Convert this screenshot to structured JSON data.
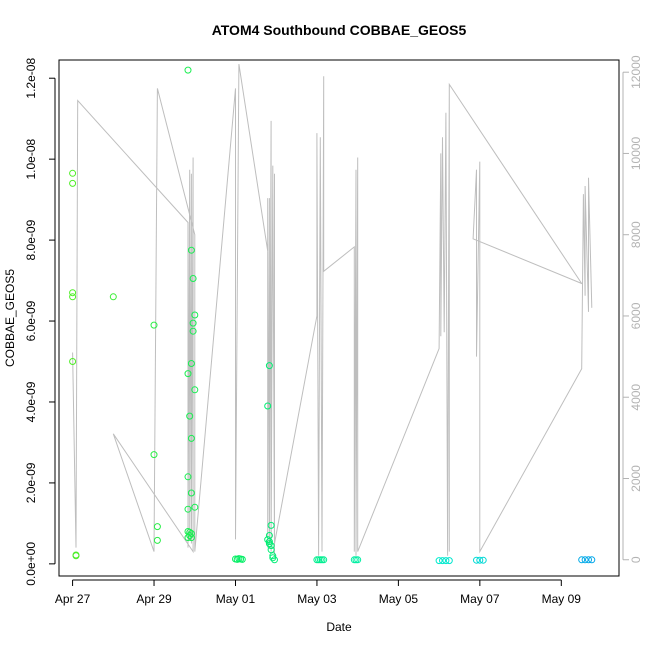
{
  "chart_data": {
    "type": "scatter",
    "title": "ATOM4 Southbound COBBAE_GEOS5",
    "xlabel": "Date",
    "ylabel": "COBBAE_GEOS5",
    "xlim": [
      "2016-04-26T16:00",
      "2016-05-10T10:00"
    ],
    "ylim": [
      -3e-10,
      1.245e-08
    ],
    "y2lim": [
      -400,
      12300
    ],
    "x_ticks": [
      {
        "date": "2016-04-27",
        "label": "Apr 27"
      },
      {
        "date": "2016-04-29",
        "label": "Apr 29"
      },
      {
        "date": "2016-05-01",
        "label": "May 01"
      },
      {
        "date": "2016-05-03",
        "label": "May 03"
      },
      {
        "date": "2016-05-05",
        "label": "May 05"
      },
      {
        "date": "2016-05-07",
        "label": "May 07"
      },
      {
        "date": "2016-05-09",
        "label": "May 09"
      }
    ],
    "y_ticks": [
      {
        "value": 0,
        "label": "0.0e+00"
      },
      {
        "value": 2e-09,
        "label": "2.0e-09"
      },
      {
        "value": 4e-09,
        "label": "4.0e-09"
      },
      {
        "value": 6e-09,
        "label": "6.0e-09"
      },
      {
        "value": 8e-09,
        "label": "8.0e-09"
      },
      {
        "value": 1e-08,
        "label": "1.0e-08"
      },
      {
        "value": 1.2e-08,
        "label": "1.2e-08"
      }
    ],
    "y2_ticks": [
      {
        "value": 0,
        "label": "0"
      },
      {
        "value": 2000,
        "label": "2000"
      },
      {
        "value": 4000,
        "label": "4000"
      },
      {
        "value": 6000,
        "label": "6000"
      },
      {
        "value": 8000,
        "label": "8000"
      },
      {
        "value": 10000,
        "label": "10000"
      },
      {
        "value": 12000,
        "label": "12000"
      }
    ],
    "grid": false,
    "legend": "none",
    "point_color_scale": [
      "#55ee22",
      "#00ee66",
      "#00eecc",
      "#0099ee"
    ],
    "points": [
      {
        "x": "2016-04-27T00:00",
        "y": 9.65e-09
      },
      {
        "x": "2016-04-27T00:00",
        "y": 9.4e-09
      },
      {
        "x": "2016-04-27T00:00",
        "y": 6.7e-09
      },
      {
        "x": "2016-04-27T00:00",
        "y": 6.6e-09
      },
      {
        "x": "2016-04-27T00:00",
        "y": 5e-09
      },
      {
        "x": "2016-04-27T02:00",
        "y": 2.2e-10
      },
      {
        "x": "2016-04-27T02:00",
        "y": 2e-10
      },
      {
        "x": "2016-04-28T00:00",
        "y": 6.6e-09
      },
      {
        "x": "2016-04-29T00:00",
        "y": 5.9e-09
      },
      {
        "x": "2016-04-29T00:00",
        "y": 2.7e-09
      },
      {
        "x": "2016-04-29T02:00",
        "y": 9.2e-10
      },
      {
        "x": "2016-04-29T02:00",
        "y": 5.8e-10
      },
      {
        "x": "2016-04-29T20:00",
        "y": 1.22e-08
      },
      {
        "x": "2016-04-29T20:00",
        "y": 4.7e-09
      },
      {
        "x": "2016-04-29T20:00",
        "y": 2.15e-09
      },
      {
        "x": "2016-04-29T20:00",
        "y": 1.35e-09
      },
      {
        "x": "2016-04-29T20:00",
        "y": 8e-10
      },
      {
        "x": "2016-04-29T20:00",
        "y": 6.5e-10
      },
      {
        "x": "2016-04-29T21:00",
        "y": 7.8e-10
      },
      {
        "x": "2016-04-29T21:00",
        "y": 7e-10
      },
      {
        "x": "2016-04-29T21:00",
        "y": 3.65e-09
      },
      {
        "x": "2016-04-29T22:00",
        "y": 7.75e-09
      },
      {
        "x": "2016-04-29T22:00",
        "y": 4.95e-09
      },
      {
        "x": "2016-04-29T22:00",
        "y": 3.1e-09
      },
      {
        "x": "2016-04-29T22:00",
        "y": 1.75e-09
      },
      {
        "x": "2016-04-29T22:00",
        "y": 7.5e-10
      },
      {
        "x": "2016-04-29T22:00",
        "y": 6.5e-10
      },
      {
        "x": "2016-04-29T23:00",
        "y": 7.05e-09
      },
      {
        "x": "2016-04-29T23:00",
        "y": 5.95e-09
      },
      {
        "x": "2016-04-29T23:00",
        "y": 5.75e-09
      },
      {
        "x": "2016-04-30T00:00",
        "y": 6.15e-09
      },
      {
        "x": "2016-04-30T00:00",
        "y": 4.3e-09
      },
      {
        "x": "2016-04-30T00:00",
        "y": 1.4e-09
      },
      {
        "x": "2016-05-01T00:00",
        "y": 1.2e-10
      },
      {
        "x": "2016-05-01T01:00",
        "y": 1.1e-10
      },
      {
        "x": "2016-05-01T02:00",
        "y": 1.3e-10
      },
      {
        "x": "2016-05-01T03:00",
        "y": 1.2e-10
      },
      {
        "x": "2016-05-01T04:00",
        "y": 1.1e-10
      },
      {
        "x": "2016-05-01T19:00",
        "y": 3.9e-09
      },
      {
        "x": "2016-05-01T20:00",
        "y": 4.9e-09
      },
      {
        "x": "2016-05-01T19:00",
        "y": 6e-10
      },
      {
        "x": "2016-05-01T20:00",
        "y": 5e-10
      },
      {
        "x": "2016-05-01T20:00",
        "y": 7e-10
      },
      {
        "x": "2016-05-01T21:00",
        "y": 9.5e-10
      },
      {
        "x": "2016-05-01T21:00",
        "y": 3.5e-10
      },
      {
        "x": "2016-05-01T22:00",
        "y": 2e-10
      },
      {
        "x": "2016-05-01T22:00",
        "y": 1.5e-10
      },
      {
        "x": "2016-05-01T23:00",
        "y": 1e-10
      },
      {
        "x": "2016-05-01T20:00",
        "y": 5.5e-10
      },
      {
        "x": "2016-05-01T21:00",
        "y": 4.5e-10
      },
      {
        "x": "2016-05-03T00:00",
        "y": 1e-10
      },
      {
        "x": "2016-05-03T01:00",
        "y": 1e-10
      },
      {
        "x": "2016-05-03T02:00",
        "y": 1e-10
      },
      {
        "x": "2016-05-03T03:00",
        "y": 1e-10
      },
      {
        "x": "2016-05-03T04:00",
        "y": 1e-10
      },
      {
        "x": "2016-05-03T22:00",
        "y": 1e-10
      },
      {
        "x": "2016-05-03T23:00",
        "y": 1e-10
      },
      {
        "x": "2016-05-04T00:00",
        "y": 1e-10
      },
      {
        "x": "2016-05-06T00:00",
        "y": 8e-11
      },
      {
        "x": "2016-05-06T02:00",
        "y": 8e-11
      },
      {
        "x": "2016-05-06T04:00",
        "y": 8e-11
      },
      {
        "x": "2016-05-06T06:00",
        "y": 8e-11
      },
      {
        "x": "2016-05-06T22:00",
        "y": 9e-11
      },
      {
        "x": "2016-05-07T00:00",
        "y": 9e-11
      },
      {
        "x": "2016-05-07T02:00",
        "y": 9e-11
      },
      {
        "x": "2016-05-09T12:00",
        "y": 1e-10
      },
      {
        "x": "2016-05-09T14:00",
        "y": 1e-10
      },
      {
        "x": "2016-05-09T16:00",
        "y": 1e-10
      },
      {
        "x": "2016-05-09T18:00",
        "y": 1e-10
      }
    ],
    "secondary_line": [
      {
        "x": "2016-04-27T00:00",
        "y2": 5100
      },
      {
        "x": "2016-04-27T02:00",
        "y2": 300
      },
      {
        "x": "2016-04-27T03:00",
        "y2": 11300
      },
      {
        "x": "2016-04-29T20:00",
        "y2": 8300
      },
      {
        "x": "2016-04-29T20:00",
        "y2": 300
      },
      {
        "x": "2016-04-29T21:00",
        "y2": 9600
      },
      {
        "x": "2016-04-29T21:00",
        "y2": 500
      },
      {
        "x": "2016-04-29T22:00",
        "y2": 9500
      },
      {
        "x": "2016-04-29T22:00",
        "y2": 400
      },
      {
        "x": "2016-04-29T23:00",
        "y2": 9900
      },
      {
        "x": "2016-04-29T23:00",
        "y2": 200
      },
      {
        "x": "2016-04-28T00:00",
        "y2": 3100
      },
      {
        "x": "2016-04-29T00:00",
        "y2": 200
      },
      {
        "x": "2016-04-29T02:00",
        "y2": 11600
      },
      {
        "x": "2016-04-30T00:00",
        "y2": 8000
      },
      {
        "x": "2016-04-30T00:00",
        "y2": 200
      },
      {
        "x": "2016-05-01T00:00",
        "y2": 11600
      },
      {
        "x": "2016-05-01T00:00",
        "y2": 500
      },
      {
        "x": "2016-05-01T02:00",
        "y2": 12200
      },
      {
        "x": "2016-05-01T19:00",
        "y2": 7600
      },
      {
        "x": "2016-05-01T19:00",
        "y2": 8900
      },
      {
        "x": "2016-05-01T19:00",
        "y2": 300
      },
      {
        "x": "2016-05-01T20:00",
        "y2": 8900
      },
      {
        "x": "2016-05-01T20:00",
        "y2": 400
      },
      {
        "x": "2016-05-01T21:00",
        "y2": 10800
      },
      {
        "x": "2016-05-01T21:00",
        "y2": 200
      },
      {
        "x": "2016-05-01T22:00",
        "y2": 9700
      },
      {
        "x": "2016-05-01T23:00",
        "y2": 100
      },
      {
        "x": "2016-05-01T23:00",
        "y2": 9500
      },
      {
        "x": "2016-05-01T23:00",
        "y2": 400
      },
      {
        "x": "2016-05-03T00:00",
        "y2": 6000
      },
      {
        "x": "2016-05-03T00:00",
        "y2": 10500
      },
      {
        "x": "2016-05-03T01:00",
        "y2": 100
      },
      {
        "x": "2016-05-03T02:00",
        "y2": 10400
      },
      {
        "x": "2016-05-03T03:00",
        "y2": 200
      },
      {
        "x": "2016-05-03T04:00",
        "y2": 11900
      },
      {
        "x": "2016-05-03T04:00",
        "y2": 7100
      },
      {
        "x": "2016-05-03T22:00",
        "y2": 7700
      },
      {
        "x": "2016-05-03T22:00",
        "y2": 200
      },
      {
        "x": "2016-05-03T23:00",
        "y2": 9600
      },
      {
        "x": "2016-05-03T23:00",
        "y2": 100
      },
      {
        "x": "2016-05-04T00:00",
        "y2": 9900
      },
      {
        "x": "2016-05-04T00:00",
        "y2": 200
      },
      {
        "x": "2016-05-06T00:00",
        "y2": 5200
      },
      {
        "x": "2016-05-06T01:00",
        "y2": 10000
      },
      {
        "x": "2016-05-06T01:00",
        "y2": 5500
      },
      {
        "x": "2016-05-06T02:00",
        "y2": 10400
      },
      {
        "x": "2016-05-06T03:00",
        "y2": 5600
      },
      {
        "x": "2016-05-06T04:00",
        "y2": 11000
      },
      {
        "x": "2016-05-06T05:00",
        "y2": 100
      },
      {
        "x": "2016-05-06T06:00",
        "y2": 11700
      },
      {
        "x": "2016-05-06T06:00",
        "y2": 200
      },
      {
        "x": "2016-05-06T06:00",
        "y2": 11700
      },
      {
        "x": "2016-05-09T12:00",
        "y2": 6800
      },
      {
        "x": "2016-05-06T20:00",
        "y2": 7900
      },
      {
        "x": "2016-05-06T22:00",
        "y2": 9600
      },
      {
        "x": "2016-05-06T22:00",
        "y2": 5000
      },
      {
        "x": "2016-05-07T00:00",
        "y2": 9800
      },
      {
        "x": "2016-05-07T00:00",
        "y2": 200
      },
      {
        "x": "2016-05-09T12:00",
        "y2": 4700
      },
      {
        "x": "2016-05-09T13:00",
        "y2": 9000
      },
      {
        "x": "2016-05-09T14:00",
        "y2": 6500
      },
      {
        "x": "2016-05-09T14:00",
        "y2": 9200
      },
      {
        "x": "2016-05-09T16:00",
        "y2": 6100
      },
      {
        "x": "2016-05-09T16:00",
        "y2": 9400
      },
      {
        "x": "2016-05-09T18:00",
        "y2": 6200
      }
    ]
  }
}
